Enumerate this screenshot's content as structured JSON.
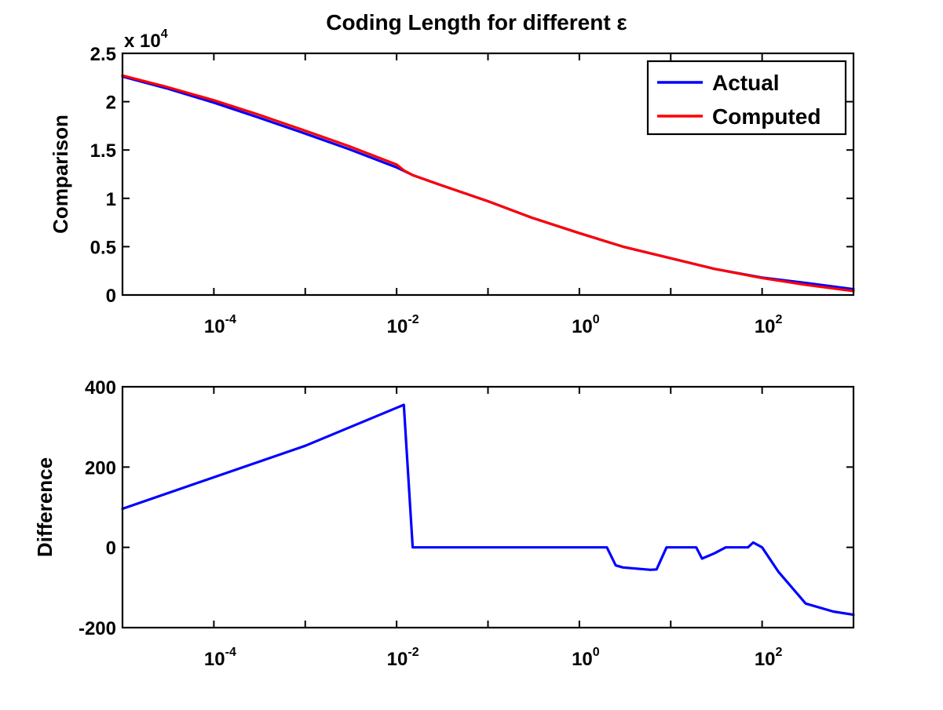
{
  "figure": {
    "title": "Coding Length for different ε"
  },
  "chart_data": [
    {
      "type": "line",
      "title": "Coding Length for different ε",
      "xlabel": "",
      "ylabel": "Comparison",
      "xscale": "log",
      "xlim": [
        1e-05,
        1000
      ],
      "ylim": [
        0,
        25000
      ],
      "y_multiplier_label": "x 10",
      "y_multiplier_exponent": "4",
      "x_ticks": [
        {
          "value": 0.0001,
          "base": "10",
          "exp": "-4"
        },
        {
          "value": 0.01,
          "base": "10",
          "exp": "-2"
        },
        {
          "value": 1,
          "base": "10",
          "exp": "0"
        },
        {
          "value": 100,
          "base": "10",
          "exp": "2"
        }
      ],
      "y_ticks": [
        {
          "value": 0,
          "label": "0"
        },
        {
          "value": 5000,
          "label": "0.5"
        },
        {
          "value": 10000,
          "label": "1"
        },
        {
          "value": 15000,
          "label": "1.5"
        },
        {
          "value": 20000,
          "label": "2"
        },
        {
          "value": 25000,
          "label": "2.5"
        }
      ],
      "legend": {
        "position": "top-right"
      },
      "grid": false,
      "series": [
        {
          "name": "Actual",
          "color": "#0000ff",
          "x": [
            1e-05,
            3e-05,
            0.0001,
            0.0003,
            0.001,
            0.003,
            0.01,
            0.015,
            0.03,
            0.1,
            0.3,
            1,
            3,
            10,
            30,
            100,
            300,
            1000
          ],
          "y": [
            22600,
            21400,
            19900,
            18400,
            16700,
            15100,
            13200,
            12400,
            11400,
            9700,
            8000,
            6400,
            5000,
            3800,
            2700,
            1800,
            1250,
            600
          ]
        },
        {
          "name": "Computed",
          "color": "#ff0000",
          "x": [
            1e-05,
            3e-05,
            0.0001,
            0.0003,
            0.001,
            0.003,
            0.01,
            0.012,
            0.015,
            0.03,
            0.1,
            0.3,
            1,
            3,
            10,
            30,
            100,
            300,
            1000
          ],
          "y": [
            22700,
            21550,
            20150,
            18700,
            17000,
            15400,
            13500,
            12900,
            12400,
            11400,
            9700,
            8000,
            6400,
            5000,
            3800,
            2700,
            1750,
            1050,
            400
          ]
        }
      ]
    },
    {
      "type": "line",
      "title": "",
      "xlabel": "",
      "ylabel": "Difference",
      "xscale": "log",
      "xlim": [
        1e-05,
        1000
      ],
      "ylim": [
        -200,
        400
      ],
      "x_ticks": [
        {
          "value": 0.0001,
          "base": "10",
          "exp": "-4"
        },
        {
          "value": 0.01,
          "base": "10",
          "exp": "-2"
        },
        {
          "value": 1,
          "base": "10",
          "exp": "0"
        },
        {
          "value": 100,
          "base": "10",
          "exp": "2"
        }
      ],
      "y_ticks": [
        {
          "value": -200,
          "label": "-200"
        },
        {
          "value": 0,
          "label": "0"
        },
        {
          "value": 200,
          "label": "200"
        },
        {
          "value": 400,
          "label": "400"
        }
      ],
      "grid": false,
      "series": [
        {
          "color": "#0000ff",
          "x": [
            1e-05,
            0.001,
            0.012,
            0.015,
            0.1,
            1,
            2,
            2.5,
            3,
            6,
            7,
            9,
            15,
            19,
            22,
            30,
            40,
            70,
            80,
            100,
            150,
            300,
            600,
            1000
          ],
          "y": [
            96,
            253,
            355,
            0,
            0,
            0,
            0,
            -45,
            -50,
            -56,
            -55,
            0,
            0,
            0,
            -28,
            -15,
            0,
            0,
            12,
            0,
            -60,
            -140,
            -160,
            -168
          ]
        }
      ]
    }
  ]
}
